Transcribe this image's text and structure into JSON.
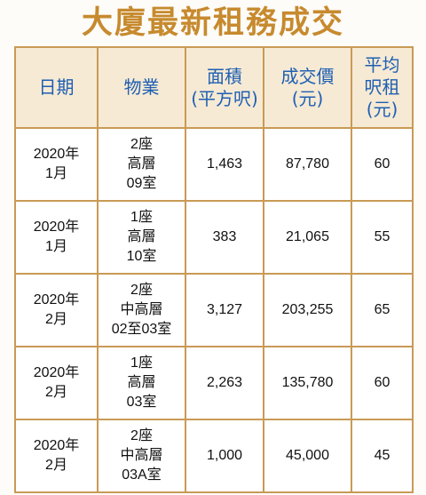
{
  "title": "大廈最新租務成交",
  "columns": [
    {
      "lines": [
        "日期"
      ]
    },
    {
      "lines": [
        "物業"
      ]
    },
    {
      "lines": [
        "面積",
        "(平方呎)"
      ]
    },
    {
      "lines": [
        "成交價",
        "(元)"
      ]
    },
    {
      "lines": [
        "平均",
        "呎租",
        "(元)"
      ]
    }
  ],
  "rows": [
    {
      "date": [
        "2020年",
        "1月"
      ],
      "property": [
        "2座",
        "高層",
        "09室"
      ],
      "area": "1,463",
      "price": "87,780",
      "rent_psf": "60"
    },
    {
      "date": [
        "2020年",
        "1月"
      ],
      "property": [
        "1座",
        "高層",
        "10室"
      ],
      "area": "383",
      "price": "21,065",
      "rent_psf": "55"
    },
    {
      "date": [
        "2020年",
        "2月"
      ],
      "property": [
        "2座",
        "中高層",
        "02至03室"
      ],
      "area": "3,127",
      "price": "203,255",
      "rent_psf": "65"
    },
    {
      "date": [
        "2020年",
        "2月"
      ],
      "property": [
        "1座",
        "高層",
        "03室"
      ],
      "area": "2,263",
      "price": "135,780",
      "rent_psf": "60"
    },
    {
      "date": [
        "2020年",
        "2月"
      ],
      "property": [
        "2座",
        "中高層",
        "03A室"
      ],
      "area": "1,000",
      "price": "45,000",
      "rent_psf": "45"
    }
  ],
  "colors": {
    "title": "#c78a2e",
    "header_text": "#1f5fb3",
    "header_bg": "#f6ead4",
    "border": "#c99a55"
  }
}
